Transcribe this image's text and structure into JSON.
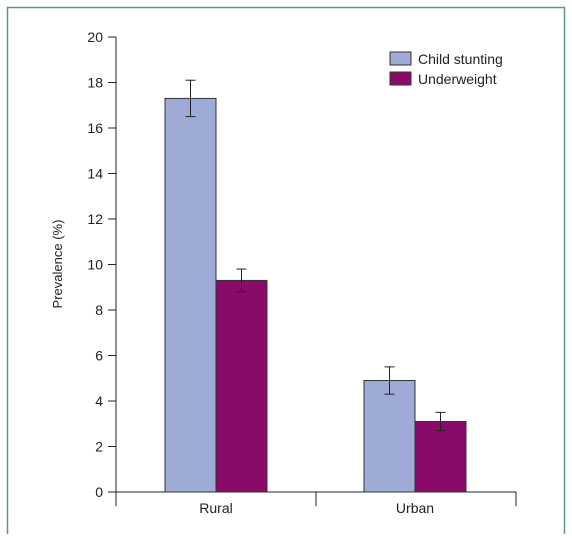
{
  "chart_data": {
    "type": "bar",
    "title": "",
    "xlabel": "",
    "ylabel": "Prevalence (%)",
    "ylim": [
      0,
      20
    ],
    "yticks": [
      0,
      2,
      4,
      6,
      8,
      10,
      12,
      14,
      16,
      18,
      20
    ],
    "categories": [
      "Rural",
      "Urban"
    ],
    "series": [
      {
        "name": "Child stunting",
        "color": "#9dabd6",
        "values": [
          17.3,
          4.9
        ],
        "error_low": [
          16.5,
          4.3
        ],
        "error_high": [
          18.1,
          5.5
        ]
      },
      {
        "name": "Underweight",
        "color": "#8a0a6a",
        "values": [
          9.3,
          3.1
        ],
        "error_low": [
          8.8,
          2.7
        ],
        "error_high": [
          9.8,
          3.5
        ]
      }
    ],
    "legend_position": "top-right",
    "grid": false,
    "frame_color": "#5a9a78"
  }
}
